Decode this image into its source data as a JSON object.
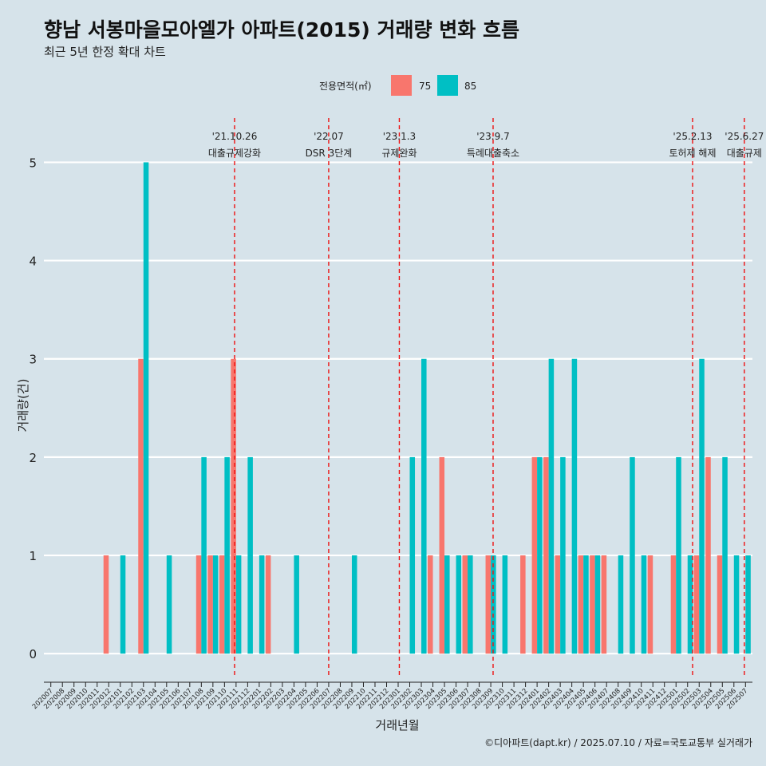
{
  "title": "향남 서봉마을모아엘가 아파트(2015) 거래량 변화 흐름",
  "subtitle": "최근 5년 한정 확대 차트",
  "caption": "©디아파트(dapt.kr) / 2025.07.10 / 자료=국토교통부 실거래가",
  "legend": {
    "title": "전용면적(㎡)",
    "items": [
      {
        "label": "75",
        "color": "#F8766D"
      },
      {
        "label": "85",
        "color": "#00BFC4"
      }
    ]
  },
  "chart_data": {
    "type": "bar",
    "xlabel": "거래년월",
    "ylabel": "거래량(건)",
    "ylim": [
      -0.25,
      5.45
    ],
    "yticks": [
      0,
      1,
      2,
      3,
      4,
      5
    ],
    "categories": [
      "202007",
      "202008",
      "202009",
      "202010",
      "202011",
      "202012",
      "202101",
      "202102",
      "202103",
      "202104",
      "202105",
      "202106",
      "202107",
      "202108",
      "202109",
      "202110",
      "202111",
      "202112",
      "202201",
      "202202",
      "202203",
      "202204",
      "202205",
      "202206",
      "202207",
      "202208",
      "202209",
      "202210",
      "202211",
      "202212",
      "202301",
      "202302",
      "202303",
      "202304",
      "202305",
      "202306",
      "202307",
      "202308",
      "202309",
      "202310",
      "202311",
      "202312",
      "202401",
      "202402",
      "202403",
      "202404",
      "202405",
      "202406",
      "202407",
      "202408",
      "202409",
      "202410",
      "202411",
      "202412",
      "202501",
      "202502",
      "202503",
      "202504",
      "202505",
      "202506",
      "202507"
    ],
    "series": [
      {
        "name": "75",
        "color": "#F8766D",
        "values": [
          0,
          0,
          0,
          0,
          0,
          1,
          0,
          0,
          3,
          0,
          0,
          0,
          0,
          1,
          1,
          1,
          3,
          0,
          0,
          1,
          0,
          0,
          0,
          0,
          0,
          0,
          0,
          0,
          0,
          0,
          0,
          0,
          0,
          1,
          2,
          0,
          1,
          0,
          1,
          0,
          0,
          1,
          2,
          2,
          1,
          0,
          1,
          1,
          1,
          0,
          0,
          0,
          1,
          0,
          1,
          0,
          1,
          2,
          1,
          0,
          0
        ]
      },
      {
        "name": "85",
        "color": "#00BFC4",
        "values": [
          0,
          0,
          0,
          0,
          0,
          0,
          1,
          0,
          5,
          0,
          1,
          0,
          0,
          2,
          1,
          2,
          1,
          2,
          1,
          0,
          0,
          1,
          0,
          0,
          0,
          0,
          1,
          0,
          0,
          0,
          0,
          2,
          3,
          0,
          1,
          1,
          1,
          0,
          1,
          1,
          0,
          0,
          2,
          3,
          2,
          3,
          1,
          1,
          0,
          1,
          2,
          1,
          0,
          0,
          2,
          1,
          3,
          0,
          2,
          1,
          1
        ]
      }
    ],
    "events": [
      {
        "date": "'21.10.26",
        "label": "대출규제강화",
        "month": "202110",
        "offset": 0.87
      },
      {
        "date": "'22.07",
        "label": "DSR 3단계",
        "month": "202207",
        "offset": 0.0
      },
      {
        "date": "'23.1.3",
        "label": "규제완화",
        "month": "202301",
        "offset": 0.1
      },
      {
        "date": "'23.9.7",
        "label": "특례대출축소",
        "month": "202309",
        "offset": 0.2
      },
      {
        "date": "'25.2.13",
        "label": "토허제 해제",
        "month": "202502",
        "offset": 0.43
      },
      {
        "date": "'25.6.27",
        "label": "대출규제",
        "month": "202506",
        "offset": 0.9
      }
    ]
  }
}
